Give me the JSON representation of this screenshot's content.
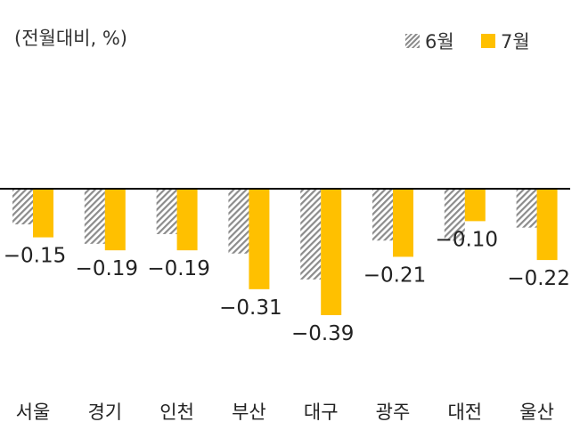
{
  "unit_label": "(전월대비, %)",
  "legend": {
    "jun": "6월",
    "jul": "7월"
  },
  "colors": {
    "jun_hatch": "#8c8c8c",
    "jul": "#ffc000",
    "zero_line": "#000000"
  },
  "chart_data": {
    "type": "bar",
    "categories": [
      "서울",
      "경기",
      "인천",
      "부산",
      "대구",
      "광주",
      "대전",
      "울산"
    ],
    "series": [
      {
        "name": "6월",
        "values": [
          -0.11,
          -0.17,
          -0.14,
          -0.2,
          -0.28,
          -0.16,
          -0.16,
          -0.12
        ]
      },
      {
        "name": "7월",
        "values": [
          -0.15,
          -0.19,
          -0.19,
          -0.31,
          -0.39,
          -0.21,
          -0.1,
          -0.22
        ]
      }
    ],
    "data_labels": [
      "-0.15",
      "-0.19",
      "-0.19",
      "-0.31",
      "-0.39",
      "-0.21",
      "-0.10",
      "-0.22"
    ],
    "ylim": [
      -0.5,
      0.5
    ],
    "grid": false,
    "legend_position": "top-right"
  }
}
